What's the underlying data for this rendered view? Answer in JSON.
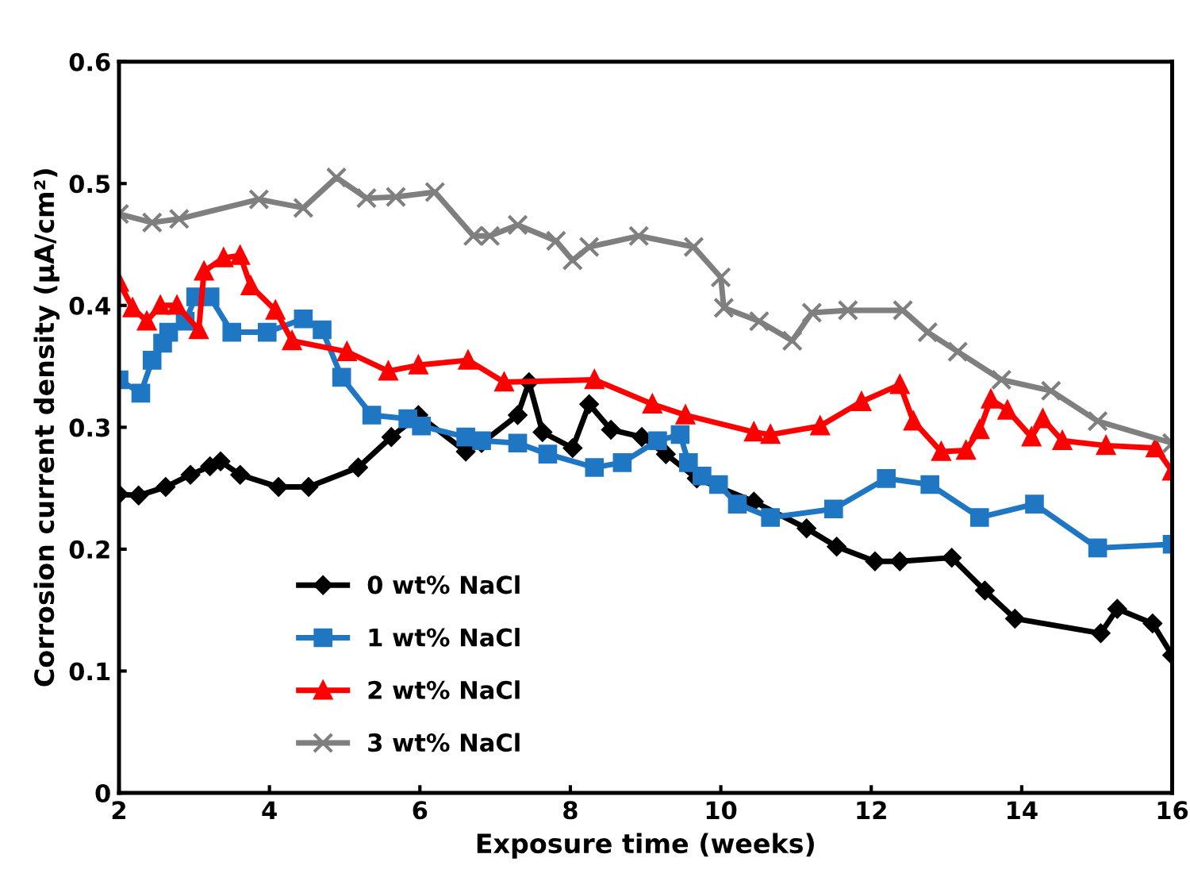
{
  "chart_data": {
    "type": "line",
    "xlabel": "Exposure time (weeks)",
    "ylabel": "Corrosion current density (μA/cm²)",
    "xlim": [
      2,
      16
    ],
    "ylim": [
      0,
      0.6
    ],
    "xticks": [
      2,
      4,
      6,
      8,
      10,
      12,
      14,
      16
    ],
    "yticks": [
      0,
      0.1,
      0.2,
      0.3,
      0.4,
      0.5,
      0.6
    ],
    "grid": false,
    "legend": "bottom left",
    "line_style": "solid",
    "series": [
      {
        "name": "0 wt% NaCl",
        "color": "#000000",
        "marker": "diamond",
        "x": [
          2.0,
          2.26,
          2.62,
          2.95,
          3.21,
          3.35,
          3.61,
          4.12,
          4.52,
          5.18,
          5.62,
          5.98,
          6.61,
          6.82,
          7.3,
          7.45,
          7.63,
          8.03,
          8.25,
          8.54,
          8.95,
          9.27,
          9.68,
          10.44,
          11.14,
          11.54,
          12.05,
          12.38,
          13.07,
          13.51,
          13.91,
          15.05,
          15.27,
          15.74,
          16.0
        ],
        "values": [
          0.245,
          0.244,
          0.251,
          0.261,
          0.268,
          0.272,
          0.261,
          0.251,
          0.251,
          0.267,
          0.292,
          0.31,
          0.28,
          0.287,
          0.31,
          0.337,
          0.296,
          0.283,
          0.319,
          0.298,
          0.292,
          0.278,
          0.258,
          0.239,
          0.217,
          0.202,
          0.19,
          0.19,
          0.193,
          0.166,
          0.143,
          0.131,
          0.151,
          0.139,
          0.113
        ]
      },
      {
        "name": "1 wt% NaCl",
        "color": "#1f77c4",
        "marker": "square",
        "x": [
          2.0,
          2.29,
          2.44,
          2.58,
          2.66,
          2.88,
          3.02,
          3.21,
          3.5,
          3.97,
          4.45,
          4.7,
          4.96,
          5.36,
          5.84,
          6.02,
          6.61,
          6.82,
          7.3,
          7.7,
          8.32,
          8.69,
          9.16,
          9.46,
          9.57,
          9.75,
          9.97,
          10.22,
          10.66,
          11.5,
          12.2,
          12.78,
          13.44,
          14.17,
          15.01,
          16.0
        ],
        "values": [
          0.339,
          0.328,
          0.355,
          0.369,
          0.378,
          0.387,
          0.407,
          0.407,
          0.378,
          0.378,
          0.389,
          0.38,
          0.341,
          0.31,
          0.307,
          0.301,
          0.292,
          0.289,
          0.287,
          0.278,
          0.267,
          0.271,
          0.289,
          0.294,
          0.271,
          0.26,
          0.253,
          0.237,
          0.226,
          0.233,
          0.258,
          0.253,
          0.226,
          0.237,
          0.201,
          0.204
        ]
      },
      {
        "name": "2 wt% NaCl",
        "color": "#ff0000",
        "marker": "triangle",
        "x": [
          2.0,
          2.18,
          2.37,
          2.55,
          2.77,
          3.06,
          3.13,
          3.39,
          3.61,
          3.75,
          4.08,
          4.3,
          5.03,
          5.58,
          5.98,
          6.64,
          7.12,
          8.32,
          9.09,
          9.53,
          10.44,
          10.66,
          11.32,
          11.87,
          12.38,
          12.56,
          12.93,
          13.26,
          13.44,
          13.59,
          13.81,
          14.13,
          14.28,
          14.54,
          15.12,
          15.78,
          16.0
        ],
        "values": [
          0.419,
          0.398,
          0.387,
          0.4,
          0.4,
          0.38,
          0.428,
          0.439,
          0.441,
          0.416,
          0.396,
          0.371,
          0.362,
          0.346,
          0.351,
          0.355,
          0.337,
          0.339,
          0.319,
          0.31,
          0.296,
          0.294,
          0.301,
          0.321,
          0.335,
          0.305,
          0.28,
          0.281,
          0.298,
          0.323,
          0.314,
          0.292,
          0.307,
          0.289,
          0.285,
          0.283,
          0.264
        ]
      },
      {
        "name": "3 wt% NaCl",
        "color": "#7f7f7f",
        "marker": "cross",
        "x": [
          2.0,
          2.44,
          2.8,
          3.86,
          4.45,
          4.89,
          5.29,
          5.68,
          6.2,
          6.71,
          6.93,
          7.3,
          7.81,
          8.03,
          8.25,
          8.91,
          9.64,
          10.0,
          10.04,
          10.51,
          10.95,
          11.21,
          11.69,
          12.42,
          12.75,
          13.15,
          13.73,
          14.39,
          15.01,
          16.0
        ],
        "values": [
          0.475,
          0.468,
          0.471,
          0.487,
          0.48,
          0.505,
          0.488,
          0.489,
          0.493,
          0.457,
          0.457,
          0.466,
          0.453,
          0.437,
          0.448,
          0.457,
          0.448,
          0.423,
          0.398,
          0.387,
          0.371,
          0.394,
          0.396,
          0.396,
          0.378,
          0.362,
          0.339,
          0.33,
          0.305,
          0.287
        ]
      }
    ]
  }
}
